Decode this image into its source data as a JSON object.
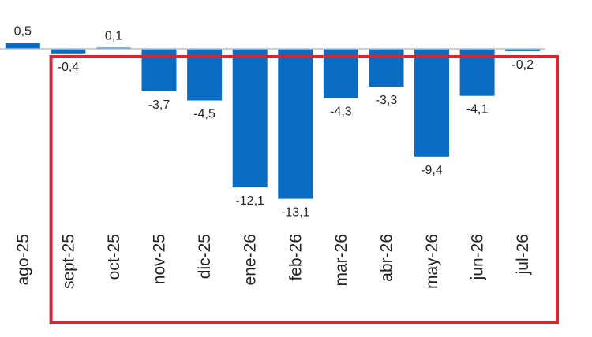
{
  "chart_data": {
    "type": "bar",
    "categories": [
      "ago-25",
      "sept-25",
      "oct-25",
      "nov-25",
      "dic-25",
      "ene-26",
      "feb-26",
      "mar-26",
      "abr-26",
      "may-26",
      "jun-26",
      "jul-26"
    ],
    "values": [
      0.5,
      -0.4,
      0.1,
      -3.7,
      -4.5,
      -12.1,
      -13.1,
      -4.3,
      -3.3,
      -9.4,
      -4.1,
      -0.2
    ],
    "data_labels": [
      "0,5",
      "-0,4",
      "0,1",
      "-3,7",
      "-4,5",
      "-12,1",
      "-13,1",
      "-4,3",
      "-3,3",
      "-9,4",
      "-4,1",
      "-0,2"
    ],
    "title": "",
    "xlabel": "",
    "ylabel": "",
    "grid": false,
    "legend": "none",
    "highlight": {
      "shape": "rectangle-outline",
      "covers_categories": [
        "sept-25",
        "jul-26"
      ]
    },
    "colors": {
      "bar": "#0a6cc3",
      "axis": "#bfbfbf",
      "highlight_border": "#d7262e",
      "text": "#222222"
    }
  }
}
